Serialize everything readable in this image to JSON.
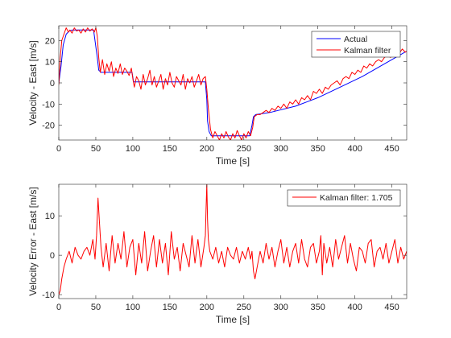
{
  "chart_data": [
    {
      "type": "line",
      "xlabel": "Time [s]",
      "ylabel": "Velocity - East [m/s]",
      "xlim": [
        0,
        470
      ],
      "ylim": [
        -27,
        27
      ],
      "xticks": [
        0,
        50,
        100,
        150,
        200,
        250,
        300,
        350,
        400,
        450
      ],
      "yticks": [
        -20,
        -10,
        0,
        10,
        20
      ],
      "legend_position": "top-right",
      "series": [
        {
          "name": "Actual",
          "color": "#0000ff",
          "x": [
            0,
            3,
            6,
            10,
            14,
            18,
            47,
            52,
            54,
            57,
            99,
            101,
            198,
            200,
            201,
            203,
            206,
            258,
            261,
            263,
            266,
            285,
            320,
            350,
            380,
            410,
            440,
            460,
            470
          ],
          "y": [
            0,
            8,
            18,
            23,
            24.5,
            25,
            25,
            12,
            6,
            5,
            5,
            0.5,
            0.5,
            -8,
            -18,
            -23,
            -25,
            -25,
            -20,
            -16,
            -15,
            -14,
            -11,
            -7,
            -2,
            3,
            9,
            13,
            15
          ]
        },
        {
          "name": "Kalman filter",
          "color": "#ff0000",
          "x": [
            0,
            2,
            4,
            7,
            10,
            13,
            15,
            18,
            21,
            24,
            27,
            30,
            33,
            36,
            39,
            42,
            45,
            48,
            50,
            52,
            54,
            56,
            59,
            62,
            65,
            68,
            71,
            74,
            77,
            80,
            83,
            86,
            89,
            92,
            95,
            98,
            100,
            102,
            105,
            108,
            111,
            114,
            117,
            120,
            123,
            126,
            129,
            132,
            135,
            138,
            141,
            144,
            147,
            150,
            153,
            156,
            159,
            162,
            165,
            168,
            171,
            174,
            177,
            180,
            183,
            186,
            189,
            192,
            195,
            198,
            200,
            202,
            205,
            208,
            211,
            214,
            217,
            220,
            223,
            226,
            229,
            232,
            235,
            238,
            241,
            244,
            247,
            250,
            253,
            256,
            259,
            262,
            264,
            268,
            272,
            276,
            280,
            284,
            288,
            292,
            296,
            300,
            304,
            308,
            312,
            316,
            320,
            324,
            328,
            332,
            336,
            340,
            344,
            348,
            352,
            356,
            360,
            364,
            368,
            372,
            376,
            380,
            384,
            388,
            392,
            396,
            400,
            404,
            408,
            412,
            416,
            420,
            424,
            428,
            432,
            436,
            440,
            444,
            448,
            452,
            456,
            460,
            464,
            468,
            470
          ],
          "y": [
            -1,
            12,
            20,
            23,
            26,
            24,
            25,
            23.5,
            26,
            24.5,
            25,
            23.5,
            25.5,
            24,
            26,
            24.5,
            25.5,
            24,
            26,
            22,
            12,
            5,
            11,
            4,
            9,
            5.5,
            10,
            3,
            7,
            4.5,
            9,
            4,
            7,
            5.5,
            3.5,
            7,
            2,
            -2,
            3,
            1,
            -3,
            4,
            -1,
            2,
            6,
            -1,
            3,
            -2,
            1,
            4,
            -3,
            2,
            -1,
            5,
            0,
            -2,
            3,
            1,
            -1,
            4,
            -3,
            2,
            0,
            3,
            -2,
            1,
            4,
            -1,
            2,
            3,
            -3,
            -12,
            -22,
            -26,
            -23,
            -25,
            -27,
            -24,
            -26,
            -23,
            -25.5,
            -27,
            -24,
            -26,
            -22.5,
            -25,
            -27,
            -24,
            -26,
            -23,
            -25,
            -21,
            -16,
            -15,
            -15,
            -14,
            -13,
            -14,
            -12,
            -13,
            -11,
            -12,
            -10,
            -12,
            -9,
            -10,
            -8,
            -10,
            -7,
            -8,
            -6,
            -8,
            -4,
            -5,
            -3,
            -5,
            -2,
            -3,
            -1,
            0,
            1,
            -1,
            2,
            3,
            2,
            5,
            4,
            6,
            5,
            8,
            7,
            9,
            8,
            10,
            11,
            10,
            12,
            13,
            12,
            14,
            15,
            14,
            16,
            14.5,
            15
          ],
          "approximate": true
        }
      ]
    },
    {
      "type": "line",
      "xlabel": "Time [s]",
      "ylabel": "Velocity Error - East [m/s]",
      "xlim": [
        0,
        470
      ],
      "ylim": [
        -11,
        18
      ],
      "xticks": [
        0,
        50,
        100,
        150,
        200,
        250,
        300,
        350,
        400,
        450
      ],
      "yticks": [
        -10,
        0,
        10
      ],
      "legend_position": "top-right",
      "series": [
        {
          "name": "Kalman filter: 1.705",
          "color": "#ff0000",
          "x": [
            0,
            2,
            4,
            7,
            10,
            14,
            18,
            22,
            26,
            30,
            34,
            38,
            42,
            46,
            49,
            51,
            53,
            55,
            57,
            60,
            64,
            68,
            72,
            76,
            80,
            84,
            88,
            92,
            96,
            100,
            104,
            108,
            112,
            116,
            120,
            124,
            128,
            132,
            136,
            140,
            144,
            148,
            152,
            156,
            160,
            164,
            168,
            172,
            176,
            180,
            184,
            188,
            192,
            196,
            198,
            199,
            200,
            201,
            202,
            204,
            208,
            212,
            216,
            220,
            224,
            228,
            232,
            236,
            240,
            244,
            248,
            252,
            256,
            259,
            261,
            263,
            265,
            268,
            272,
            276,
            280,
            284,
            288,
            292,
            296,
            300,
            304,
            308,
            312,
            316,
            320,
            324,
            328,
            332,
            336,
            340,
            344,
            348,
            352,
            354,
            356,
            358,
            362,
            366,
            370,
            374,
            378,
            382,
            386,
            390,
            394,
            398,
            402,
            406,
            410,
            414,
            418,
            422,
            426,
            430,
            434,
            438,
            442,
            446,
            450,
            454,
            458,
            462,
            466,
            470
          ],
          "y": [
            -10,
            -9,
            -6,
            -3,
            -1,
            1,
            -2,
            2,
            0,
            -1,
            1,
            2,
            0,
            4,
            -1,
            5,
            14.5,
            8,
            2,
            -3,
            3,
            -4,
            5,
            -2,
            3,
            -1,
            6,
            -3,
            2,
            4,
            -5,
            3,
            -2,
            6,
            -4,
            1,
            5,
            -3,
            4,
            -2,
            3,
            -5,
            6,
            -1,
            2,
            -4,
            3,
            0,
            -3,
            5,
            -2,
            4,
            -3,
            2,
            5,
            12,
            18,
            9,
            4,
            1,
            -1,
            2,
            -2,
            1,
            -3,
            2,
            0,
            -1,
            2,
            -2,
            1,
            -1,
            2,
            -1,
            1,
            -4,
            -6,
            -3,
            1,
            -2,
            3,
            -1,
            2,
            -3,
            1,
            4,
            -2,
            2,
            -3,
            1,
            3,
            -2,
            4,
            -1,
            -3,
            2,
            3,
            -2,
            1,
            5,
            -5,
            3,
            -2,
            2,
            -3,
            4,
            -1,
            2,
            5,
            -2,
            3,
            -1,
            -4,
            2,
            1,
            -2,
            3,
            4,
            -3,
            1,
            2,
            -1,
            3,
            -2,
            1,
            4,
            -2,
            2,
            -1,
            1
          ],
          "approximate": true
        }
      ]
    }
  ]
}
